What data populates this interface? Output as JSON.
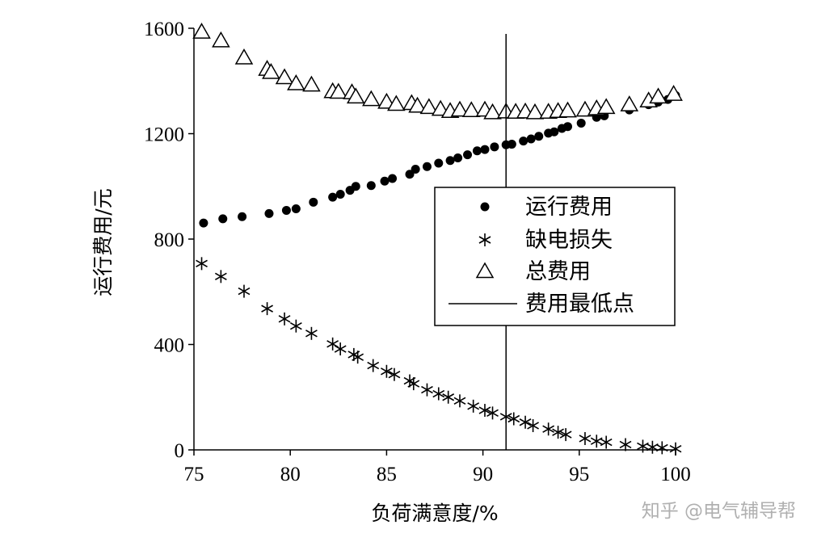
{
  "watermark": "知乎 @电气辅导帮",
  "chart_data": {
    "type": "scatter",
    "xlabel": "负荷满意度/%",
    "ylabel": "运行费用/元",
    "xlim": [
      75,
      100
    ],
    "ylim": [
      0,
      1600
    ],
    "xticks": [
      75,
      80,
      85,
      90,
      95,
      100
    ],
    "yticks": [
      0,
      400,
      800,
      1200,
      1600
    ],
    "grid": false,
    "legend_position": "right",
    "series": [
      {
        "name": "运行费用",
        "marker": "dot",
        "x": [
          75.5,
          76.5,
          77.5,
          78.9,
          79.8,
          80.3,
          81.2,
          82.2,
          82.6,
          83.1,
          83.4,
          84.2,
          84.9,
          85.3,
          86.2,
          86.5,
          87.1,
          87.7,
          88.3,
          88.7,
          89.2,
          89.7,
          90.1,
          90.6,
          91.2,
          91.5,
          92.1,
          92.5,
          92.9,
          93.4,
          93.7,
          94.1,
          94.4,
          95.1,
          95.9,
          96.3,
          97.6,
          98.6,
          99.1,
          99.6,
          100.0
        ],
        "y": [
          861,
          877,
          885,
          897,
          909,
          915,
          940,
          959,
          970,
          985,
          1000,
          1003,
          1020,
          1030,
          1046,
          1065,
          1075,
          1088,
          1098,
          1108,
          1120,
          1135,
          1140,
          1150,
          1158,
          1160,
          1172,
          1180,
          1190,
          1202,
          1207,
          1220,
          1227,
          1240,
          1262,
          1268,
          1290,
          1310,
          1320,
          1330,
          1345
        ]
      },
      {
        "name": "缺电损失",
        "marker": "asterisk",
        "x": [
          75.4,
          76.4,
          77.6,
          78.8,
          79.7,
          80.3,
          81.1,
          82.2,
          82.6,
          83.3,
          83.5,
          84.3,
          85.0,
          85.4,
          86.2,
          86.4,
          87.1,
          87.7,
          88.2,
          88.8,
          89.5,
          90.1,
          90.5,
          91.2,
          91.6,
          92.2,
          92.6,
          93.4,
          93.9,
          94.3,
          95.3,
          95.9,
          96.4,
          97.4,
          98.3,
          98.8,
          99.3,
          100.0
        ],
        "y": [
          707,
          658,
          602,
          536,
          497,
          470,
          442,
          402,
          383,
          362,
          352,
          320,
          298,
          286,
          262,
          251,
          228,
          213,
          200,
          186,
          166,
          150,
          140,
          126,
          118,
          105,
          92,
          79,
          67,
          58,
          43,
          33,
          29,
          20,
          14,
          10,
          8,
          4
        ]
      },
      {
        "name": "总费用",
        "marker": "triangle",
        "x": [
          75.4,
          76.4,
          77.6,
          78.8,
          79.0,
          79.7,
          80.3,
          81.1,
          82.2,
          82.5,
          83.2,
          83.4,
          84.2,
          85.0,
          85.5,
          86.3,
          86.6,
          87.2,
          87.8,
          88.3,
          88.8,
          89.4,
          90.1,
          90.5,
          91.2,
          91.7,
          92.2,
          92.7,
          93.4,
          93.9,
          94.4,
          95.3,
          95.9,
          96.4,
          97.6,
          98.6,
          99.1,
          99.9
        ],
        "y": [
          1586,
          1553,
          1488,
          1445,
          1433,
          1413,
          1390,
          1385,
          1360,
          1358,
          1356,
          1340,
          1330,
          1320,
          1312,
          1315,
          1305,
          1300,
          1293,
          1285,
          1290,
          1288,
          1290,
          1280,
          1283,
          1282,
          1283,
          1280,
          1282,
          1285,
          1287,
          1290,
          1295,
          1300,
          1310,
          1325,
          1340,
          1350
        ]
      },
      {
        "name": "费用最低点",
        "marker": "vline",
        "x": [
          91.2
        ]
      }
    ]
  }
}
